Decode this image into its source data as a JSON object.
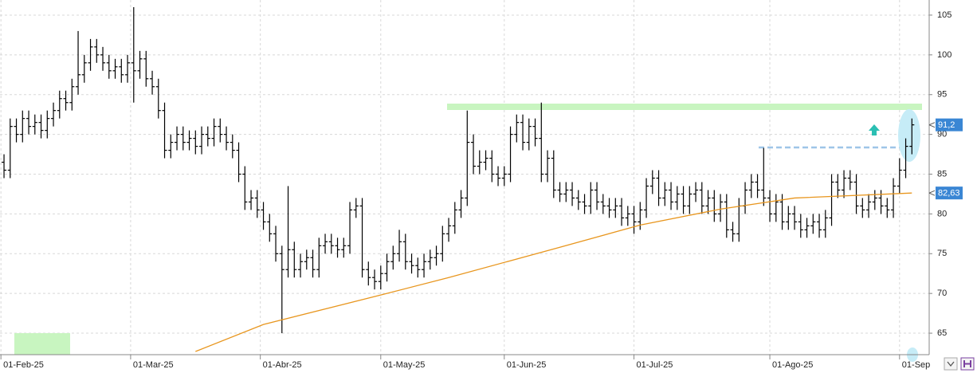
{
  "chart_data": {
    "type": "ohlc",
    "xlim": [
      -0.65,
      149.8
    ],
    "ylim": [
      62.3,
      106.9
    ],
    "yticks": [
      65,
      70,
      75,
      80,
      85,
      90,
      95,
      100,
      105
    ],
    "xticks": [
      {
        "value": -0.5,
        "label": "01-Feb-25"
      },
      {
        "value": 20.5,
        "label": "01-Mar-25"
      },
      {
        "value": 41.5,
        "label": "01-Abr-25"
      },
      {
        "value": 61,
        "label": "01-May-25"
      },
      {
        "value": 81,
        "label": "01-Jun-25"
      },
      {
        "value": 102,
        "label": "01-Jul-25"
      },
      {
        "value": 124,
        "label": "01-Ago-25"
      },
      {
        "value": 145,
        "label": "01-Sep"
      }
    ],
    "grid": true,
    "color": "#000000",
    "open": [
      86.5,
      85.5,
      91,
      90,
      92,
      91,
      91.5,
      90.5,
      92,
      93,
      94.5,
      94,
      96,
      97.5,
      99,
      101,
      100,
      99,
      98,
      98.5,
      97.5,
      99,
      98,
      99.5,
      97,
      96,
      93,
      88,
      89,
      90,
      89,
      89.5,
      88.5,
      90,
      89.5,
      91,
      90,
      89,
      88,
      85,
      81.5,
      82,
      80.5,
      79,
      77.5,
      75,
      73,
      75.5,
      73,
      74,
      74.5,
      73,
      76,
      76.5,
      76,
      75.5,
      76,
      80.5,
      81,
      73,
      72,
      71.5,
      72.5,
      74,
      75,
      76.5,
      74,
      73.5,
      73,
      74,
      74.5,
      75,
      77.5,
      78.5,
      80.5,
      82,
      89,
      86,
      86.5,
      87,
      85,
      84.5,
      85,
      90,
      91.5,
      89,
      91,
      89.5,
      85,
      87,
      83,
      82.5,
      83,
      82,
      81.5,
      81,
      83,
      81.5,
      81,
      80.5,
      81,
      79.5,
      80,
      79,
      80.5,
      83.5,
      84.5,
      82,
      83,
      81.5,
      82.5,
      81,
      82.5,
      83,
      81,
      82,
      80,
      81.5,
      78,
      77.5,
      81,
      83,
      84,
      83,
      82,
      80,
      81.5,
      79,
      80,
      79,
      78,
      78.5,
      79,
      78,
      79.5,
      84,
      83,
      84.5,
      84,
      81,
      80.5,
      81.5,
      82,
      81,
      80.5,
      83.5,
      85.5,
      88.5
    ],
    "high": [
      87.5,
      92,
      92,
      93,
      93,
      92.5,
      92.5,
      93,
      94,
      95.5,
      95.5,
      97,
      103,
      100,
      102,
      102,
      101,
      100,
      99.5,
      99.5,
      100,
      106,
      100.5,
      100.5,
      98,
      97,
      94,
      90,
      91,
      91,
      90.5,
      90.5,
      91,
      91,
      92,
      92,
      91,
      90,
      89,
      86,
      83,
      83,
      81.5,
      80,
      78.5,
      76,
      83.5,
      76.5,
      75,
      75.5,
      75.5,
      77,
      77.5,
      77.5,
      77,
      77,
      81.5,
      82,
      82,
      74,
      73,
      73.5,
      75,
      76,
      78,
      77.5,
      75,
      74.5,
      75,
      75.5,
      76,
      78.5,
      79.5,
      81.5,
      83,
      93,
      90,
      88,
      88,
      88,
      86,
      86,
      91,
      92.5,
      92.5,
      92,
      92,
      94,
      88,
      88,
      84,
      84,
      84,
      83,
      82.5,
      84,
      84,
      82.5,
      82,
      82,
      82,
      81,
      81,
      81.5,
      84.5,
      85.5,
      85.5,
      84,
      84,
      83.5,
      83.5,
      83.5,
      84,
      84,
      83,
      83,
      82.5,
      82.5,
      79,
      82,
      84,
      85,
      85,
      88.3,
      83,
      82.5,
      82.5,
      81,
      81,
      80,
      79.5,
      80,
      80,
      80.5,
      85,
      85,
      85.5,
      85.5,
      85,
      82,
      82.5,
      83,
      83,
      82,
      84.5,
      87,
      89.5,
      92
    ],
    "low": [
      84.5,
      84.5,
      89,
      89,
      90,
      90,
      89.5,
      89.5,
      91,
      92,
      93,
      93,
      95,
      96.5,
      98,
      99,
      98,
      97,
      97,
      96.5,
      96.5,
      94,
      97,
      96,
      95,
      92,
      87,
      87,
      88,
      88,
      88,
      87.5,
      87.5,
      88.5,
      88.5,
      89,
      88,
      87,
      84,
      80.5,
      80.5,
      79.5,
      78,
      76.5,
      74,
      65,
      72,
      72,
      72,
      73,
      72,
      72,
      75,
      75,
      74.5,
      74.5,
      75,
      79.5,
      72,
      71,
      70.5,
      70.5,
      71.5,
      73,
      74,
      73,
      72.5,
      72,
      72,
      73,
      73.5,
      74,
      76.5,
      77.5,
      79.5,
      81,
      85,
      85,
      85.5,
      84,
      83.5,
      83.5,
      84,
      89,
      88,
      88,
      88.5,
      84,
      84,
      82,
      81.5,
      81.5,
      81,
      80.5,
      80,
      80,
      80.5,
      80,
      79.5,
      79.5,
      78.5,
      78.5,
      77.5,
      78,
      79.5,
      82.5,
      81,
      81,
      80.5,
      80.5,
      80,
      80,
      81.5,
      80,
      80,
      79,
      79,
      77,
      76.5,
      76.5,
      80,
      82,
      82,
      81,
      79,
      79,
      78,
      78,
      78,
      77,
      77,
      77.5,
      77,
      77,
      78.5,
      82,
      82,
      83,
      80,
      79.5,
      79.5,
      80.5,
      80,
      79.5,
      79.5,
      82.5,
      84.5,
      87.5
    ],
    "close": [
      85.5,
      91,
      90,
      92,
      91,
      91.5,
      90.5,
      92,
      93,
      94.5,
      94,
      96,
      97.5,
      99,
      101,
      100,
      99,
      98,
      98.5,
      97.5,
      99,
      98,
      99.5,
      97,
      96,
      93,
      88,
      89,
      90,
      89,
      89.5,
      88.5,
      90,
      89.5,
      91,
      90,
      89,
      88,
      85,
      81.5,
      82,
      80.5,
      79,
      77.5,
      75,
      73,
      75.5,
      73,
      74,
      74.5,
      73,
      76,
      76.5,
      76,
      75.5,
      76,
      80.5,
      81,
      73,
      72,
      71.5,
      72.5,
      74,
      75,
      76.5,
      74,
      73.5,
      73,
      74,
      74.5,
      75,
      77.5,
      78.5,
      80.5,
      82,
      89,
      86,
      86.5,
      87,
      85,
      84.5,
      85,
      90,
      91.5,
      89,
      91,
      89.5,
      85,
      87,
      83,
      82.5,
      83,
      82,
      81.5,
      81,
      83,
      81.5,
      81,
      80.5,
      81,
      79.5,
      80,
      79,
      80.5,
      83.5,
      84.5,
      82,
      83,
      81.5,
      82.5,
      81,
      82.5,
      83,
      81,
      82,
      80,
      81.5,
      78,
      77.5,
      81,
      83,
      84,
      83,
      82,
      80,
      81.5,
      79,
      80,
      79,
      78,
      78.5,
      79,
      78,
      79.5,
      84,
      83,
      84.5,
      84,
      81,
      80.5,
      81.5,
      82,
      81,
      80.5,
      83.5,
      85.5,
      88.5,
      91.2
    ],
    "moving_average": {
      "color": "#e8961e",
      "x": [
        31,
        42,
        61,
        72,
        90,
        103,
        116,
        128,
        147
      ],
      "values": [
        62.7,
        66.1,
        69.8,
        72,
        75.8,
        78.6,
        80.6,
        82,
        82.63
      ]
    },
    "price_tags": [
      {
        "value": 91.2,
        "label": "91,2",
        "color": "#3a86d4"
      },
      {
        "value": 82.63,
        "label": "82,63",
        "color": "#3a86d4"
      }
    ]
  }
}
